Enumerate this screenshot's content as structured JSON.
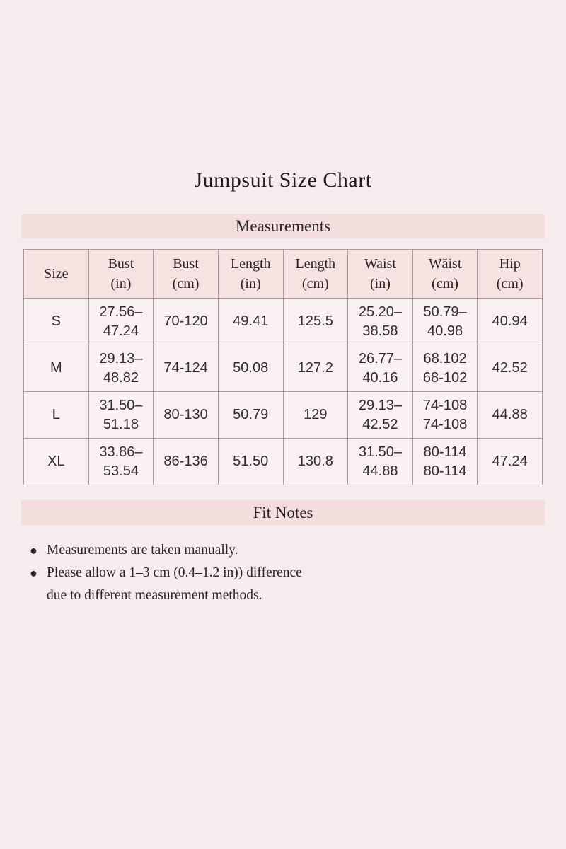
{
  "page": {
    "title": "Jumpsuit Size Chart"
  },
  "colors": {
    "page_bg": "#f7eced",
    "band_bg": "#f3dedd",
    "header_cell_bg": "#f5e2e1",
    "data_cell_bg": "#f9f0f1",
    "border": "#ab9b9c",
    "text": "#2b2326"
  },
  "measurements": {
    "section_title": "Measurements",
    "columns": [
      "Size",
      "Bust\n(in)",
      "Bust\n(cm)",
      "Length\n(in)",
      "Length\n(cm)",
      "Waist\n(in)",
      "Wăist\n(cm)",
      "Hip\n(cm)"
    ],
    "rows": [
      [
        "S",
        "27.56–\n47.24",
        "70-120",
        "49.41",
        "125.5",
        "25.20–\n38.58",
        "50.79–\n40.98",
        "40.94"
      ],
      [
        "M",
        "29.13–\n48.82",
        "74-124",
        "50.08",
        "127.2",
        "26.77–\n40.16",
        "68.102\n68-102",
        "42.52"
      ],
      [
        "L",
        "31.50–\n51.18",
        "80-130",
        "50.79",
        "129",
        "29.13–\n42.52",
        "74-108\n74-108",
        "44.88"
      ],
      [
        "XL",
        "33.86–\n53.54",
        "86-136",
        "51.50",
        "130.8",
        "31.50–\n44.88",
        "80-114\n80-114",
        "47.24"
      ]
    ]
  },
  "fit_notes": {
    "section_title": "Fit Notes",
    "bullet": "●",
    "items": [
      "Measurements are taken manually.",
      "Please allow a 1–3 cm (0.4–1.2 in)) difference\ndue to different measurement methods."
    ]
  }
}
